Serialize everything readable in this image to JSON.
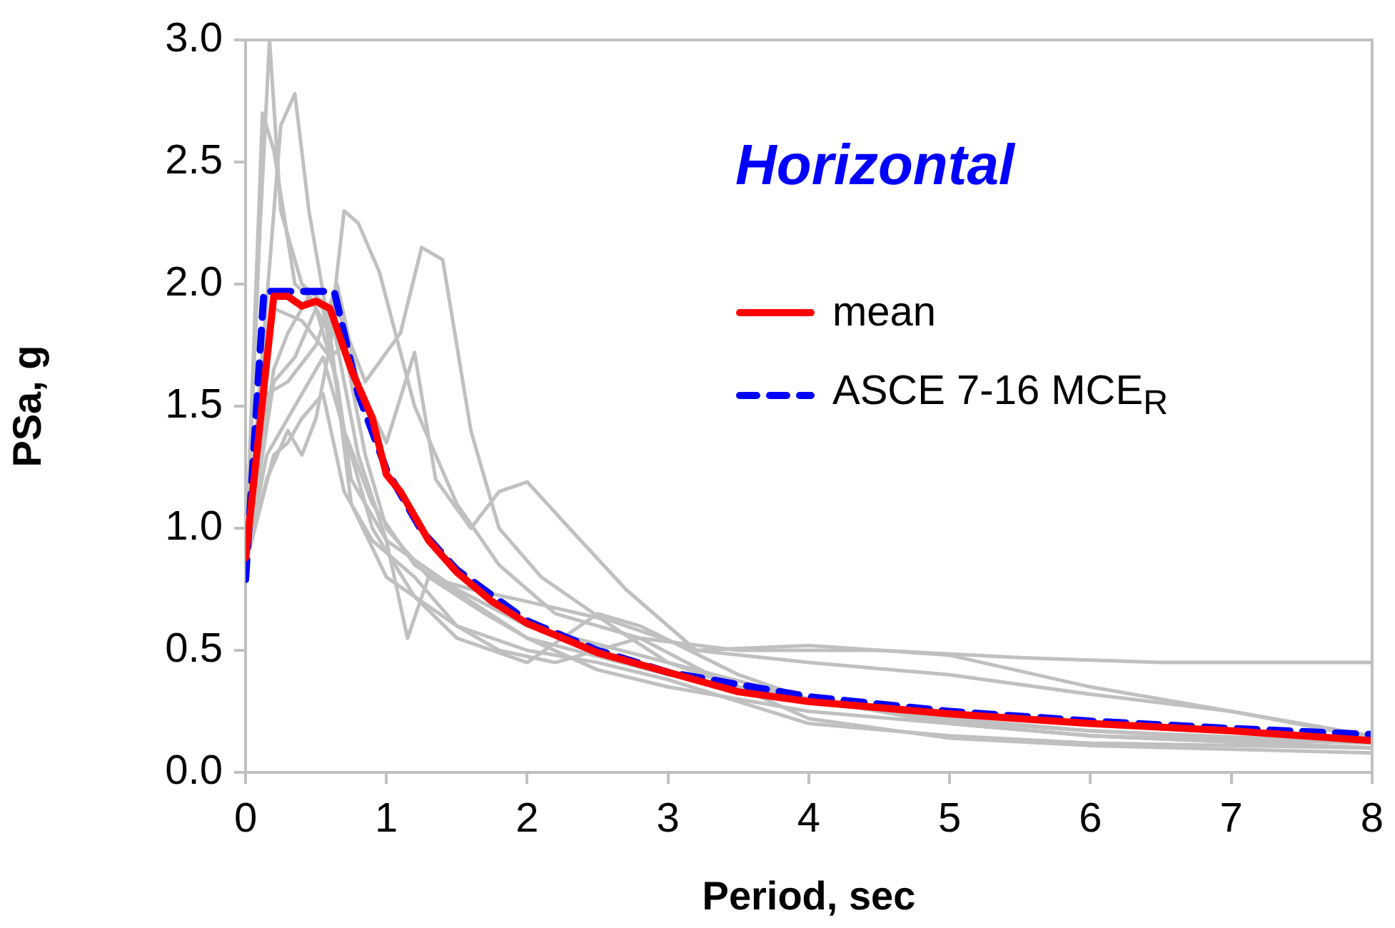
{
  "chart_data": {
    "type": "line",
    "title": "Horizontal",
    "xlabel": "Period, sec",
    "ylabel": "PSa, g",
    "xlim": [
      0,
      8
    ],
    "xticks": [
      0,
      1,
      2,
      3,
      4,
      5,
      6,
      7,
      8
    ],
    "ylim": [
      0,
      3
    ],
    "yticks": [
      {
        "value": 0,
        "label": "0.0"
      },
      {
        "value": 0.5,
        "label": "0.5"
      },
      {
        "value": 1,
        "label": "1.0"
      },
      {
        "value": 1.5,
        "label": "1.5"
      },
      {
        "value": 2,
        "label": "2.0"
      },
      {
        "value": 2.5,
        "label": "2.5"
      },
      {
        "value": 3,
        "label": "3.0"
      }
    ],
    "grid": false,
    "legend": "top right",
    "marker": "none",
    "series": [
      {
        "color": "#c0c0c0",
        "x": [
          0,
          0.1,
          0.17,
          0.25,
          0.4,
          0.6,
          0.8,
          1.0,
          1.5,
          2,
          3,
          4,
          5,
          6,
          8
        ],
        "values": [
          0.85,
          2.2,
          3.0,
          2.3,
          2.0,
          1.9,
          1.3,
          0.95,
          0.75,
          0.6,
          0.45,
          0.3,
          0.22,
          0.17,
          0.12
        ]
      },
      {
        "color": "#c0c0c0",
        "x": [
          0,
          0.12,
          0.2,
          0.35,
          0.55,
          0.7,
          0.9,
          1.2,
          1.6,
          2,
          3,
          4,
          5,
          6,
          7,
          8
        ],
        "values": [
          0.85,
          2.7,
          2.55,
          2.0,
          1.9,
          1.4,
          1.1,
          0.85,
          0.7,
          0.55,
          0.4,
          0.3,
          0.21,
          0.17,
          0.14,
          0.12
        ]
      },
      {
        "color": "#c0c0c0",
        "x": [
          0,
          0.25,
          0.35,
          0.45,
          0.6,
          0.75,
          1,
          1.5,
          2,
          2.5,
          3,
          4,
          5,
          6,
          8
        ],
        "values": [
          0.85,
          2.65,
          2.78,
          2.3,
          1.8,
          1.1,
          0.8,
          0.6,
          0.5,
          0.45,
          0.38,
          0.2,
          0.15,
          0.12,
          0.1
        ]
      },
      {
        "color": "#c0c0c0",
        "x": [
          0,
          0.2,
          0.3,
          0.45,
          0.6,
          0.7,
          0.8,
          0.95,
          1.2,
          1.5,
          1.8,
          2.2,
          2.8,
          3.5,
          4.5,
          5.5,
          6.5,
          8
        ],
        "values": [
          0.85,
          1.65,
          1.8,
          1.95,
          1.8,
          2.3,
          2.25,
          2.05,
          1.5,
          1.1,
          0.85,
          0.65,
          0.55,
          0.5,
          0.5,
          0.47,
          0.45,
          0.45
        ]
      },
      {
        "color": "#c0c0c0",
        "x": [
          0,
          0.15,
          0.3,
          0.4,
          0.5,
          0.65,
          0.85,
          1.1,
          1.25,
          1.4,
          1.6,
          1.8,
          2.1,
          2.6,
          3,
          3.5,
          4,
          5,
          6,
          8
        ],
        "values": [
          0.85,
          1.2,
          1.4,
          1.3,
          1.45,
          1.9,
          1.6,
          1.8,
          2.15,
          2.1,
          1.4,
          1.0,
          0.8,
          0.6,
          0.45,
          0.35,
          0.3,
          0.2,
          0.15,
          0.12
        ]
      },
      {
        "color": "#c0c0c0",
        "x": [
          0,
          0.15,
          0.3,
          0.5,
          0.65,
          0.8,
          1.0,
          1.2,
          1.35,
          1.6,
          1.8,
          2,
          2.3,
          2.7,
          3.2,
          4,
          5,
          6,
          7,
          8
        ],
        "values": [
          0.85,
          1.55,
          1.6,
          1.75,
          2.0,
          1.6,
          1.35,
          1.72,
          1.2,
          1.0,
          1.15,
          1.19,
          1.0,
          0.75,
          0.5,
          0.45,
          0.4,
          0.32,
          0.25,
          0.15
        ]
      },
      {
        "color": "#c0c0c0",
        "x": [
          0,
          0.2,
          0.35,
          0.5,
          0.65,
          0.75,
          1,
          1.15,
          1.3,
          1.6,
          2,
          2.6,
          3.2,
          4,
          5,
          6,
          7,
          8
        ],
        "values": [
          0.85,
          1.6,
          1.7,
          1.9,
          1.6,
          1.2,
          0.95,
          0.55,
          0.8,
          0.75,
          0.7,
          0.62,
          0.5,
          0.52,
          0.48,
          0.35,
          0.25,
          0.14
        ]
      },
      {
        "color": "#c0c0c0",
        "x": [
          0,
          0.2,
          0.3,
          0.4,
          0.55,
          0.7,
          0.9,
          1.2,
          1.5,
          1.8,
          2.2,
          2.8,
          3.3,
          4,
          5,
          6,
          8
        ],
        "values": [
          0.85,
          1.3,
          1.35,
          1.45,
          1.55,
          1.15,
          0.95,
          0.8,
          0.6,
          0.5,
          0.45,
          0.55,
          0.4,
          0.22,
          0.14,
          0.11,
          0.08
        ]
      },
      {
        "color": "#c0c0c0",
        "x": [
          0,
          0.2,
          0.4,
          0.6,
          0.7,
          0.85,
          1,
          1.3,
          1.7,
          2,
          2.5,
          3,
          4,
          5,
          6,
          8
        ],
        "values": [
          0.85,
          1.9,
          1.85,
          1.7,
          1.75,
          1.3,
          1.0,
          0.8,
          0.65,
          0.55,
          0.42,
          0.35,
          0.25,
          0.2,
          0.15,
          0.1
        ]
      },
      {
        "color": "#c0c0c0",
        "x": [
          0,
          0.15,
          0.35,
          0.55,
          0.7,
          0.9,
          1.2,
          1.5,
          2,
          2.5,
          2.8,
          3.5,
          4,
          5,
          6,
          8
        ],
        "values": [
          0.85,
          1.3,
          1.5,
          1.7,
          1.4,
          1.0,
          0.72,
          0.55,
          0.45,
          0.65,
          0.6,
          0.4,
          0.3,
          0.2,
          0.15,
          0.1
        ]
      },
      {
        "name": "mean",
        "color": "#ff0000",
        "line_style": "solid",
        "x": [
          0,
          0.2,
          0.3,
          0.4,
          0.5,
          0.6,
          0.75,
          0.9,
          1.0,
          1.1,
          1.3,
          1.5,
          1.75,
          2,
          2.5,
          3,
          3.5,
          4,
          5,
          6,
          7,
          8
        ],
        "values": [
          0.88,
          1.95,
          1.95,
          1.91,
          1.93,
          1.9,
          1.65,
          1.45,
          1.22,
          1.15,
          0.95,
          0.82,
          0.7,
          0.61,
          0.49,
          0.41,
          0.33,
          0.29,
          0.24,
          0.2,
          0.17,
          0.13
        ]
      },
      {
        "name": "ASCE 7-16 MCE$_{R}$",
        "color": "#0000ff",
        "line_style": "dashed",
        "x": [
          0,
          0.13,
          0.63,
          0.8,
          1.0,
          1.25,
          1.5,
          2,
          2.5,
          3,
          4,
          5,
          6,
          7,
          8
        ],
        "values": [
          0.79,
          1.97,
          1.97,
          1.55,
          1.24,
          0.99,
          0.83,
          0.62,
          0.5,
          0.41,
          0.31,
          0.25,
          0.21,
          0.18,
          0.155
        ]
      }
    ]
  }
}
